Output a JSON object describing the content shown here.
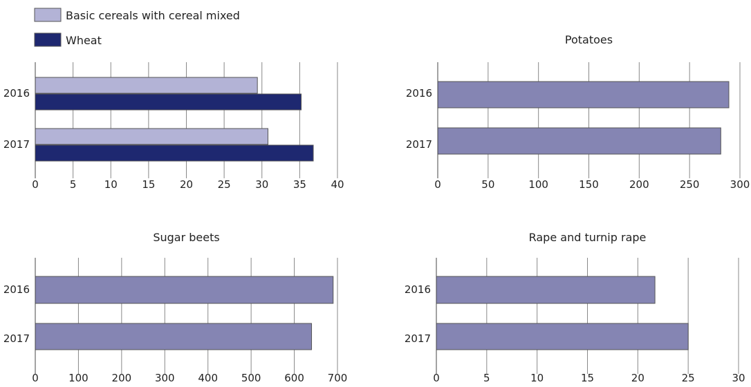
{
  "legend": {
    "items": [
      {
        "label": "Basic cereals with cereal mixed",
        "color": "#b3b3d6"
      },
      {
        "label": "Wheat",
        "color": "#1e2870"
      }
    ]
  },
  "colors": {
    "single_series": "#8585b3",
    "grid": "#888888",
    "bar_border": "#555555"
  },
  "chart_data": [
    {
      "type": "bar",
      "orientation": "horizontal",
      "title": "",
      "categories": [
        "2016",
        "2017"
      ],
      "series": [
        {
          "name": "Basic cereals with cereal mixed",
          "values": [
            29.4,
            30.8
          ]
        },
        {
          "name": "Wheat",
          "values": [
            35.2,
            36.8
          ]
        }
      ],
      "xlim": [
        0,
        40
      ],
      "ticks": [
        0,
        5,
        10,
        15,
        20,
        25,
        30,
        35,
        40
      ],
      "grid": true,
      "legend": "top-left"
    },
    {
      "type": "bar",
      "orientation": "horizontal",
      "title": "Potatoes",
      "categories": [
        "2016",
        "2017"
      ],
      "series": [
        {
          "values": [
            289,
            281
          ]
        }
      ],
      "xlim": [
        0,
        300
      ],
      "ticks": [
        0,
        50,
        100,
        150,
        200,
        250,
        300
      ],
      "grid": true
    },
    {
      "type": "bar",
      "orientation": "horizontal",
      "title": "Sugar beets",
      "categories": [
        "2016",
        "2017"
      ],
      "series": [
        {
          "values": [
            690,
            640
          ]
        }
      ],
      "xlim": [
        0,
        700
      ],
      "ticks": [
        0,
        100,
        200,
        300,
        400,
        500,
        600,
        700
      ],
      "grid": true
    },
    {
      "type": "bar",
      "orientation": "horizontal",
      "title": "Rape and turnip rape",
      "categories": [
        "2016",
        "2017"
      ],
      "series": [
        {
          "values": [
            21.7,
            25.0
          ]
        }
      ],
      "xlim": [
        0,
        30
      ],
      "ticks": [
        0,
        5,
        10,
        15,
        20,
        25,
        30
      ],
      "grid": true
    }
  ]
}
